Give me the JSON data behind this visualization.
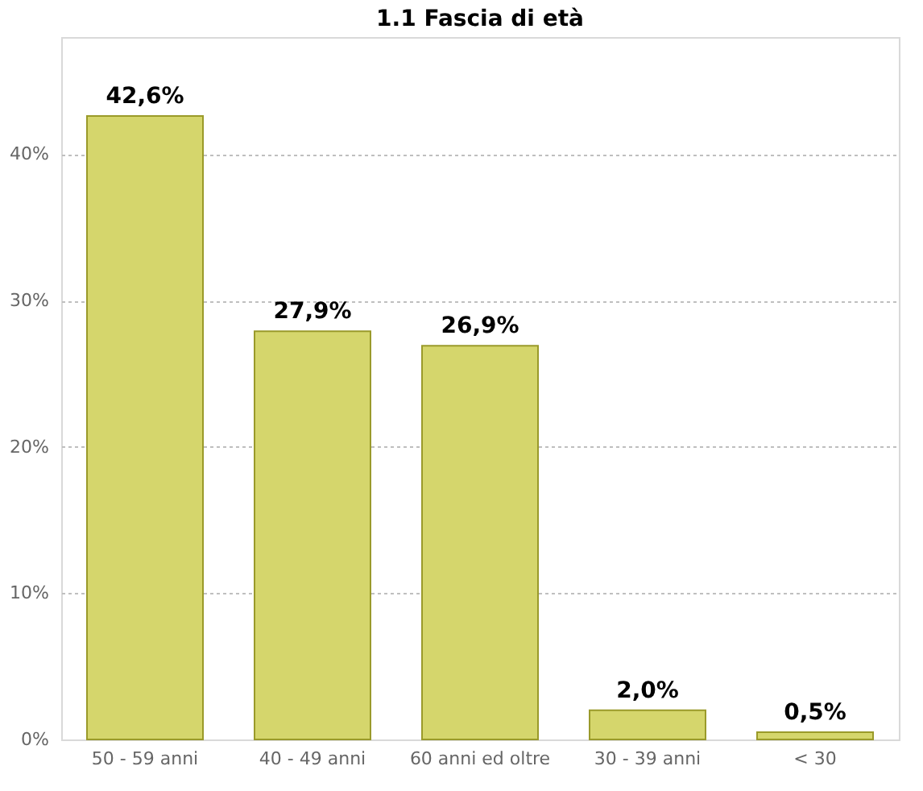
{
  "chart_data": {
    "type": "bar",
    "title": "1.1 Fascia di età",
    "categories": [
      "50 - 59 anni",
      "40 - 49 anni",
      "60 anni ed oltre",
      "30 - 39 anni",
      "< 30"
    ],
    "values": [
      42.6,
      27.9,
      26.9,
      2.0,
      0.5
    ],
    "value_labels": [
      "42,6%",
      "27,9%",
      "26,9%",
      "2,0%",
      "0,5%"
    ],
    "color": "#d5d66c",
    "ylim": [
      0,
      48
    ],
    "yticks": [
      {
        "value": 0,
        "label": "0%"
      },
      {
        "value": 10,
        "label": "10%"
      },
      {
        "value": 20,
        "label": "20%"
      },
      {
        "value": 30,
        "label": "30%"
      },
      {
        "value": 40,
        "label": "40%"
      }
    ],
    "grid": "y"
  }
}
